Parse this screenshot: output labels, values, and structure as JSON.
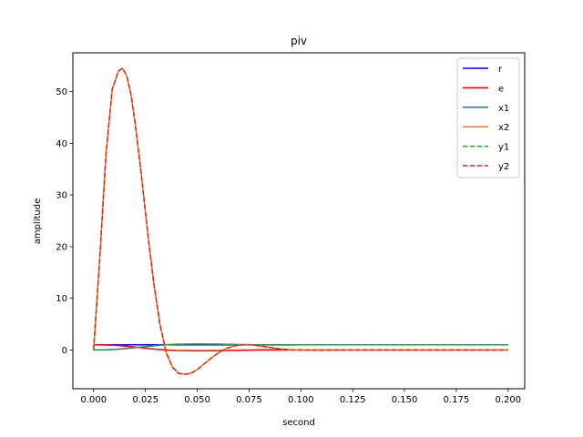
{
  "chart_data": {
    "type": "line",
    "title": "piv",
    "xlabel": "second",
    "ylabel": "amplitude",
    "xlim": [
      -0.01,
      0.208
    ],
    "ylim": [
      -7.5,
      57.5
    ],
    "xticks": [
      0.0,
      0.025,
      0.05,
      0.075,
      0.1,
      0.125,
      0.15,
      0.175,
      0.2
    ],
    "xtick_labels": [
      "0.000",
      "0.025",
      "0.050",
      "0.075",
      "0.100",
      "0.125",
      "0.150",
      "0.175",
      "0.200"
    ],
    "yticks": [
      0,
      10,
      20,
      30,
      40,
      50
    ],
    "ytick_labels": [
      "0",
      "10",
      "20",
      "30",
      "40",
      "50"
    ],
    "grid": false,
    "legend_position": "top-right",
    "series": [
      {
        "name": "r",
        "color": "#0000ff",
        "dash": "solid",
        "x": [
          0.0,
          0.2
        ],
        "y": [
          1.0,
          1.0
        ]
      },
      {
        "name": "e",
        "color": "#ff0000",
        "dash": "solid",
        "x": [
          0.0,
          0.005,
          0.01,
          0.015,
          0.02,
          0.025,
          0.03,
          0.035,
          0.04,
          0.05,
          0.06,
          0.07,
          0.08,
          0.09,
          0.1,
          0.12,
          0.15,
          0.2
        ],
        "y": [
          1.0,
          0.98,
          0.9,
          0.75,
          0.55,
          0.35,
          0.15,
          0.0,
          -0.1,
          -0.15,
          -0.12,
          -0.05,
          0.02,
          0.03,
          0.01,
          0.0,
          0.0,
          0.0
        ]
      },
      {
        "name": "x1",
        "color": "#1f77b4",
        "dash": "solid",
        "x": [
          0.0,
          0.005,
          0.01,
          0.015,
          0.02,
          0.025,
          0.03,
          0.035,
          0.04,
          0.05,
          0.06,
          0.07,
          0.08,
          0.09,
          0.1,
          0.12,
          0.15,
          0.2
        ],
        "y": [
          0.0,
          0.02,
          0.1,
          0.25,
          0.45,
          0.65,
          0.85,
          1.0,
          1.1,
          1.15,
          1.12,
          1.05,
          0.98,
          0.97,
          0.99,
          1.0,
          1.0,
          1.0
        ]
      },
      {
        "name": "x2",
        "color": "#ff7f0e",
        "dash": "solid",
        "x": [
          0.0,
          0.003,
          0.006,
          0.009,
          0.012,
          0.014,
          0.016,
          0.018,
          0.02,
          0.023,
          0.026,
          0.029,
          0.032,
          0.035,
          0.038,
          0.041,
          0.044,
          0.047,
          0.05,
          0.053,
          0.056,
          0.06,
          0.064,
          0.068,
          0.072,
          0.076,
          0.08,
          0.085,
          0.09,
          0.095,
          0.1,
          0.11,
          0.12,
          0.15,
          0.2
        ],
        "y": [
          0.0,
          18.0,
          38.0,
          50.5,
          54.0,
          54.5,
          53.0,
          49.5,
          44.0,
          34.0,
          23.0,
          13.0,
          5.0,
          -0.5,
          -3.3,
          -4.5,
          -4.7,
          -4.5,
          -3.8,
          -2.8,
          -1.8,
          -0.6,
          0.3,
          0.8,
          1.0,
          1.0,
          0.8,
          0.5,
          0.2,
          0.05,
          0.0,
          -0.05,
          0.0,
          0.0,
          0.0
        ]
      },
      {
        "name": "y1",
        "color": "#2ca02c",
        "dash": "dashed",
        "x": [
          0.0,
          0.005,
          0.01,
          0.015,
          0.02,
          0.025,
          0.03,
          0.035,
          0.04,
          0.05,
          0.06,
          0.07,
          0.08,
          0.09,
          0.1,
          0.12,
          0.15,
          0.2
        ],
        "y": [
          0.0,
          0.02,
          0.1,
          0.25,
          0.45,
          0.65,
          0.85,
          1.0,
          1.1,
          1.15,
          1.12,
          1.05,
          0.98,
          0.97,
          0.99,
          1.0,
          1.0,
          1.0
        ]
      },
      {
        "name": "y2",
        "color": "#d62728",
        "dash": "dashed",
        "x": [
          0.0,
          0.003,
          0.006,
          0.009,
          0.012,
          0.014,
          0.016,
          0.018,
          0.02,
          0.023,
          0.026,
          0.029,
          0.032,
          0.035,
          0.038,
          0.041,
          0.044,
          0.047,
          0.05,
          0.053,
          0.056,
          0.06,
          0.064,
          0.068,
          0.072,
          0.076,
          0.08,
          0.085,
          0.09,
          0.095,
          0.1,
          0.11,
          0.12,
          0.15,
          0.2
        ],
        "y": [
          0.0,
          18.0,
          38.0,
          50.5,
          54.0,
          54.5,
          53.0,
          49.5,
          44.0,
          34.0,
          23.0,
          13.0,
          5.0,
          -0.5,
          -3.3,
          -4.5,
          -4.7,
          -4.5,
          -3.8,
          -2.8,
          -1.8,
          -0.6,
          0.3,
          0.8,
          1.0,
          1.0,
          0.8,
          0.5,
          0.2,
          0.05,
          0.0,
          -0.05,
          0.0,
          0.0,
          0.0
        ]
      }
    ]
  }
}
